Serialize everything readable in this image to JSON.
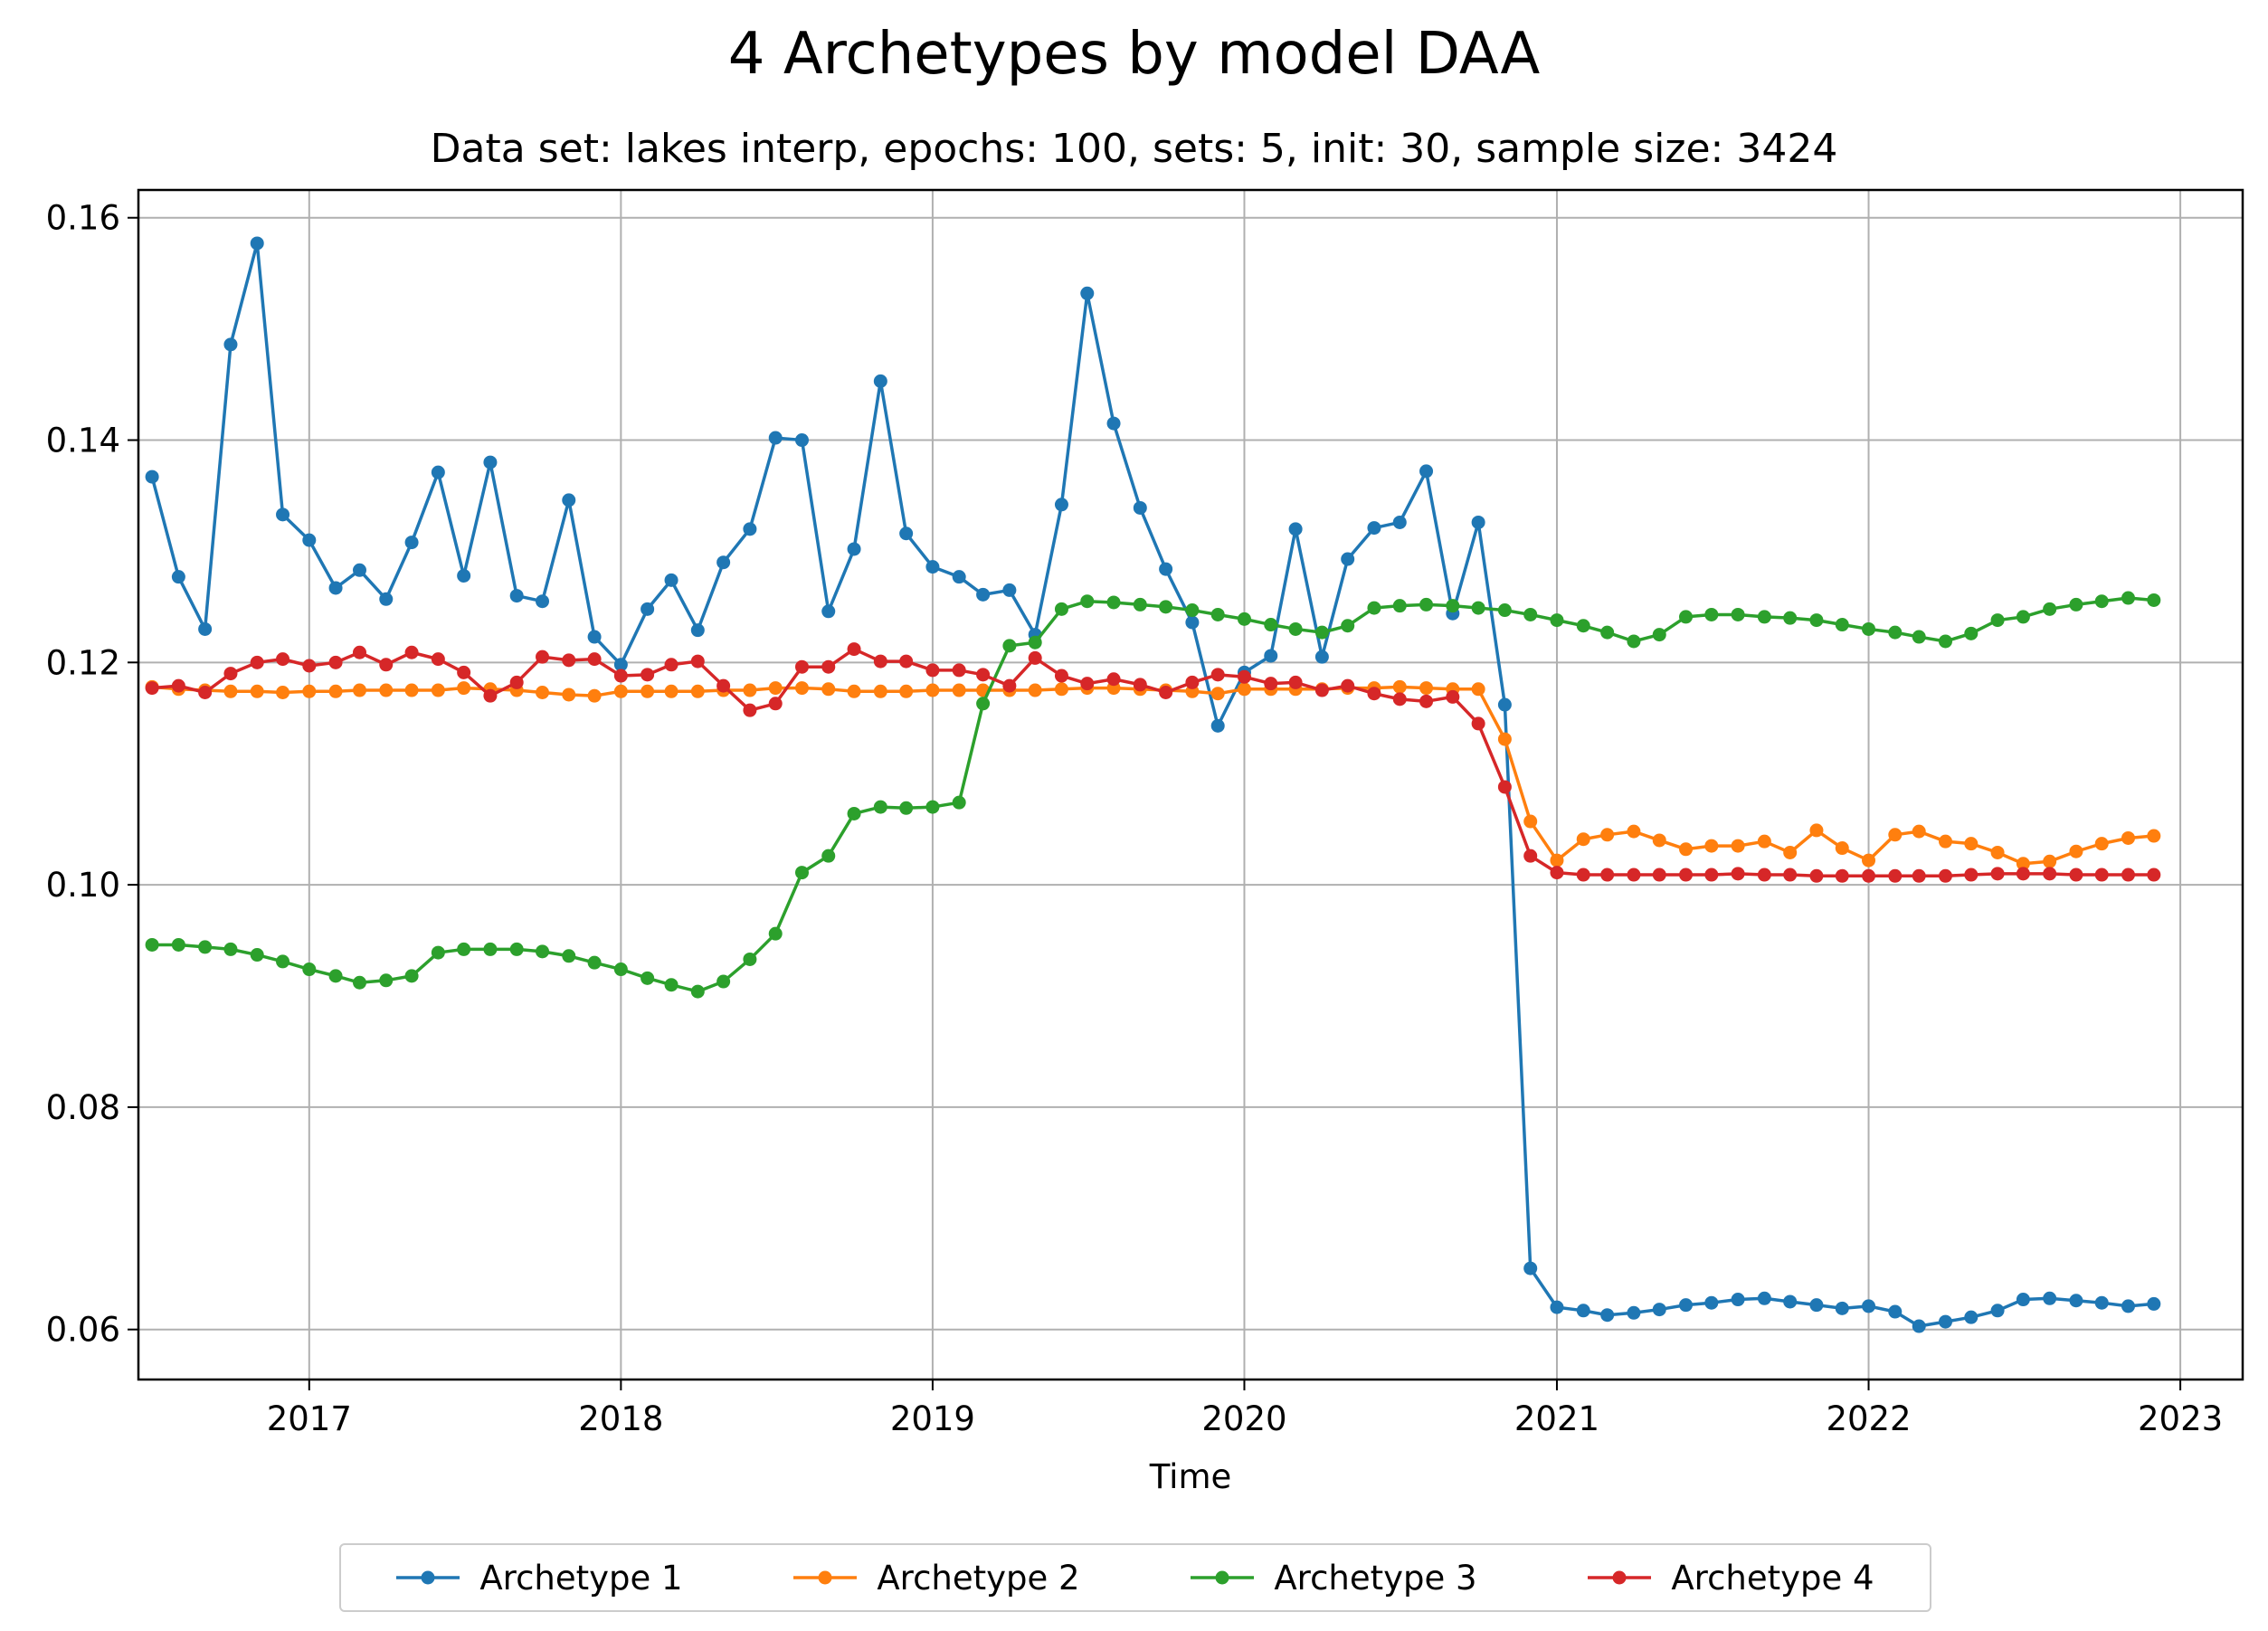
{
  "chart_data": {
    "type": "line",
    "title": "4 Archetypes by model DAA",
    "subtitle": "Data set: lakes interp, epochs: 100, sets: 5, init: 30, sample size: 3424",
    "xlabel": "Time",
    "ylabel": "",
    "x_ticks": [
      "2017",
      "2018",
      "2019",
      "2020",
      "2021",
      "2022",
      "2023"
    ],
    "y_ticks": [
      "0.06",
      "0.08",
      "0.10",
      "0.12",
      "0.14",
      "0.16"
    ],
    "xlim": [
      "2016-06-15",
      "2023-03-15"
    ],
    "ylim": [
      0.0555,
      0.1625
    ],
    "grid": true,
    "legend_position": "bottom-center",
    "x": [
      "2016-07-01",
      "2016-08-01",
      "2016-09-01",
      "2016-10-01",
      "2016-11-01",
      "2016-12-01",
      "2017-01-01",
      "2017-02-01",
      "2017-03-01",
      "2017-04-01",
      "2017-05-01",
      "2017-06-01",
      "2017-07-01",
      "2017-08-01",
      "2017-09-01",
      "2017-10-01",
      "2017-11-01",
      "2017-12-01",
      "2018-01-01",
      "2018-02-01",
      "2018-03-01",
      "2018-04-01",
      "2018-05-01",
      "2018-06-01",
      "2018-07-01",
      "2018-08-01",
      "2018-09-01",
      "2018-10-01",
      "2018-11-01",
      "2018-12-01",
      "2019-01-01",
      "2019-02-01",
      "2019-03-01",
      "2019-04-01",
      "2019-05-01",
      "2019-06-01",
      "2019-07-01",
      "2019-08-01",
      "2019-09-01",
      "2019-10-01",
      "2019-11-01",
      "2019-12-01",
      "2020-01-01",
      "2020-02-01",
      "2020-03-01",
      "2020-04-01",
      "2020-05-01",
      "2020-06-01",
      "2020-07-01",
      "2020-08-01",
      "2020-09-01",
      "2020-10-01",
      "2020-11-01",
      "2020-12-01",
      "2021-01-01",
      "2021-02-01",
      "2021-03-01",
      "2021-04-01",
      "2021-05-01",
      "2021-06-01",
      "2021-07-01",
      "2021-08-01",
      "2021-09-01",
      "2021-10-01",
      "2021-11-01",
      "2021-12-01",
      "2022-01-01",
      "2022-02-01",
      "2022-03-01",
      "2022-04-01",
      "2022-05-01",
      "2022-06-01",
      "2022-07-01",
      "2022-08-01",
      "2022-09-01",
      "2022-10-01",
      "2022-11-01",
      "2022-12-01"
    ],
    "series": [
      {
        "name": "Archetype 1",
        "color": "#1f77b4",
        "values": [
          0.1367,
          0.1277,
          0.123,
          0.1486,
          0.1577,
          0.1333,
          0.131,
          0.1267,
          0.1283,
          0.1257,
          0.1308,
          0.1371,
          0.1278,
          0.138,
          0.126,
          0.1255,
          0.1346,
          0.1223,
          0.1198,
          0.1248,
          0.1274,
          0.1229,
          0.129,
          0.132,
          0.1402,
          0.14,
          0.1246,
          0.1302,
          0.1453,
          0.1316,
          0.1286,
          0.1277,
          0.1261,
          0.1265,
          0.1225,
          0.1342,
          0.1532,
          0.1415,
          0.1339,
          0.1284,
          0.1236,
          0.1143,
          0.1191,
          0.1206,
          0.132,
          0.1205,
          0.1293,
          0.1321,
          0.1326,
          0.1372,
          0.1244,
          0.1326,
          0.1162,
          0.0655,
          0.062,
          0.0617,
          0.0613,
          0.0615,
          0.0618,
          0.0622,
          0.0624,
          0.0627,
          0.0628,
          0.0625,
          0.0622,
          0.0619,
          0.0621,
          0.0616,
          0.0603,
          0.0607,
          0.0611,
          0.0617,
          0.0627,
          0.0628,
          0.0626,
          0.0624,
          0.0621,
          0.0623
        ]
      },
      {
        "name": "Archetype 2",
        "color": "#ff7f0e",
        "values": [
          0.1178,
          0.1176,
          0.1175,
          0.1174,
          0.1174,
          0.1173,
          0.1174,
          0.1174,
          0.1175,
          0.1175,
          0.1175,
          0.1175,
          0.1177,
          0.1176,
          0.1175,
          0.1173,
          0.1171,
          0.117,
          0.1174,
          0.1174,
          0.1174,
          0.1174,
          0.1175,
          0.1175,
          0.1177,
          0.1177,
          0.1176,
          0.1174,
          0.1174,
          0.1174,
          0.1175,
          0.1175,
          0.1175,
          0.1175,
          0.1175,
          0.1176,
          0.1177,
          0.1177,
          0.1176,
          0.1175,
          0.1174,
          0.1172,
          0.1176,
          0.1176,
          0.1176,
          0.1176,
          0.1177,
          0.1177,
          0.1178,
          0.1177,
          0.1176,
          0.1176,
          0.1131,
          0.1057,
          0.1022,
          0.1041,
          0.1045,
          0.1048,
          0.104,
          0.1032,
          0.1035,
          0.1035,
          0.1039,
          0.1029,
          0.1049,
          0.1033,
          0.1022,
          0.1045,
          0.1048,
          0.1039,
          0.1037,
          0.1029,
          0.1019,
          0.1021,
          0.103,
          0.1037,
          0.1042,
          0.1044
        ]
      },
      {
        "name": "Archetype 3",
        "color": "#2ca02c",
        "values": [
          0.0946,
          0.0946,
          0.0944,
          0.0942,
          0.0937,
          0.0931,
          0.0924,
          0.0918,
          0.0912,
          0.0914,
          0.0918,
          0.0939,
          0.0942,
          0.0942,
          0.0942,
          0.094,
          0.0936,
          0.093,
          0.0924,
          0.0916,
          0.091,
          0.0904,
          0.0913,
          0.0933,
          0.0956,
          0.1011,
          0.1026,
          0.1064,
          0.107,
          0.1069,
          0.107,
          0.1074,
          0.1163,
          0.1215,
          0.1218,
          0.1248,
          0.1255,
          0.1254,
          0.1252,
          0.125,
          0.1247,
          0.1243,
          0.1239,
          0.1234,
          0.123,
          0.1227,
          0.1233,
          0.1249,
          0.1251,
          0.1252,
          0.1251,
          0.1249,
          0.1247,
          0.1243,
          0.1238,
          0.1233,
          0.1227,
          0.1219,
          0.1225,
          0.1241,
          0.1243,
          0.1243,
          0.1241,
          0.124,
          0.1238,
          0.1234,
          0.123,
          0.1227,
          0.1223,
          0.1219,
          0.1226,
          0.1238,
          0.1241,
          0.1248,
          0.1252,
          0.1255,
          0.1258,
          0.1256
        ]
      },
      {
        "name": "Archetype 4",
        "color": "#d62728",
        "values": [
          0.1177,
          0.1179,
          0.1173,
          0.119,
          0.12,
          0.1203,
          0.1197,
          0.12,
          0.1209,
          0.1198,
          0.1209,
          0.1203,
          0.1191,
          0.117,
          0.1182,
          0.1205,
          0.1202,
          0.1203,
          0.1188,
          0.1189,
          0.1198,
          0.1201,
          0.1179,
          0.1157,
          0.1163,
          0.1196,
          0.1196,
          0.1212,
          0.1201,
          0.1201,
          0.1193,
          0.1193,
          0.1189,
          0.1179,
          0.1204,
          0.1188,
          0.1181,
          0.1185,
          0.118,
          0.1173,
          0.1182,
          0.1189,
          0.1187,
          0.1181,
          0.1182,
          0.1175,
          0.1179,
          0.1172,
          0.1167,
          0.1165,
          0.1169,
          0.1145,
          0.1088,
          0.1026,
          0.1011,
          0.1009,
          0.1009,
          0.1009,
          0.1009,
          0.1009,
          0.1009,
          0.101,
          0.1009,
          0.1009,
          0.1008,
          0.1008,
          0.1008,
          0.1008,
          0.1008,
          0.1008,
          0.1009,
          0.101,
          0.101,
          0.101,
          0.1009,
          0.1009,
          0.1009,
          0.1009
        ]
      }
    ]
  }
}
